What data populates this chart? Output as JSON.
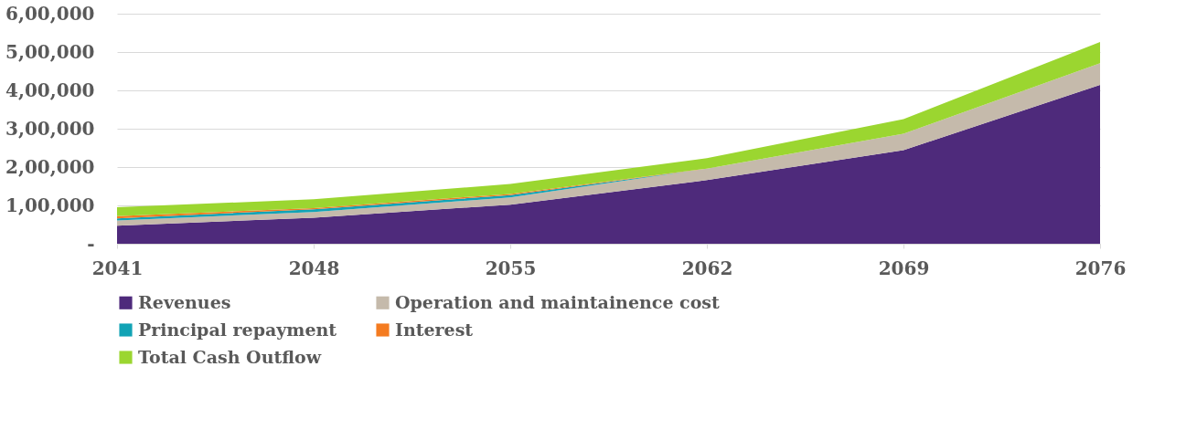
{
  "chart_data": {
    "type": "area",
    "stacked": true,
    "categories": [
      "2041",
      "2048",
      "2055",
      "2062",
      "2069",
      "2076"
    ],
    "series": [
      {
        "name": "Revenues",
        "color": "#4e2a7b",
        "values": [
          47000,
          68000,
          102000,
          166000,
          244000,
          414000
        ]
      },
      {
        "name": "Operation and maintainence cost",
        "color": "#c5baab",
        "values": [
          14000,
          15000,
          19000,
          30000,
          43000,
          57000
        ]
      },
      {
        "name": "Principal repayment",
        "color": "#12a3b5",
        "values": [
          5000,
          7000,
          6000,
          0,
          0,
          0
        ]
      },
      {
        "name": "Interest",
        "color": "#f47b20",
        "values": [
          6000,
          3000,
          3000,
          0,
          0,
          0
        ]
      },
      {
        "name": "Total Cash Outflow",
        "color": "#9bd630",
        "values": [
          23000,
          23000,
          26000,
          27000,
          38000,
          55000
        ]
      }
    ],
    "ylim": [
      0,
      600000
    ],
    "yticks": [
      {
        "value": 0,
        "label": "-"
      },
      {
        "value": 100000,
        "label": "1,00,000"
      },
      {
        "value": 200000,
        "label": "2,00,000"
      },
      {
        "value": 300000,
        "label": "3,00,000"
      },
      {
        "value": 400000,
        "label": "4,00,000"
      },
      {
        "value": 500000,
        "label": "5,00,000"
      },
      {
        "value": 600000,
        "label": "6,00,000"
      }
    ],
    "grid": "y",
    "legend": "bottom"
  }
}
